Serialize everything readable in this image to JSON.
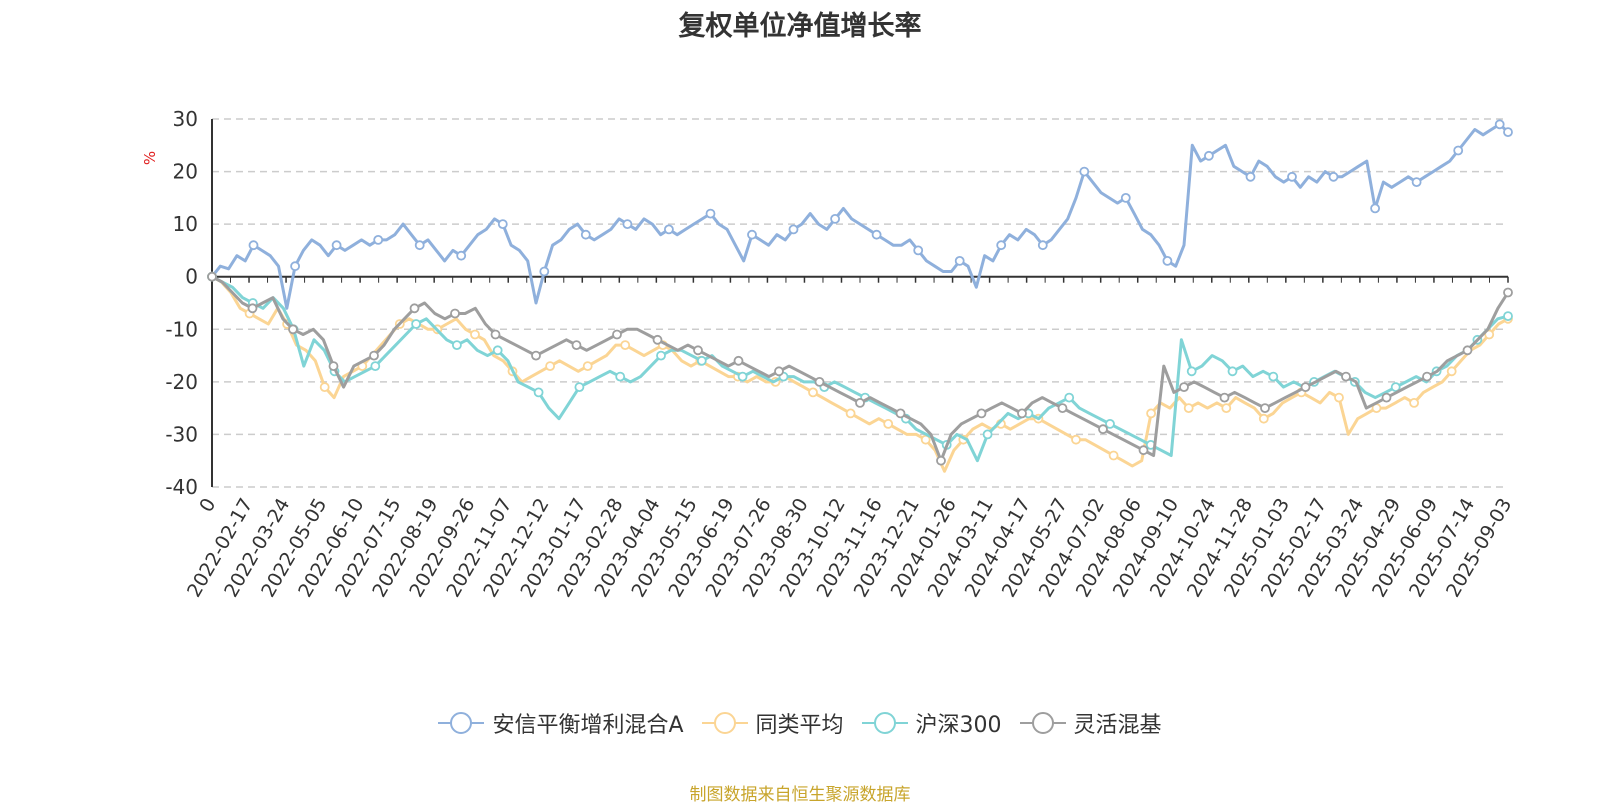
{
  "chart_data": {
    "type": "line",
    "title": "复权单位净值增长率",
    "ylabel": "%",
    "ylim": [
      -40,
      30
    ],
    "yticks": [
      30,
      20,
      10,
      0,
      -10,
      -20,
      -30,
      -40
    ],
    "grid": true,
    "legend_position": "bottom",
    "x_start_label": "0",
    "x_tick_labels": [
      "2022-02-17",
      "2022-03-24",
      "2022-05-05",
      "2022-06-10",
      "2022-07-15",
      "2022-08-19",
      "2022-09-26",
      "2022-11-07",
      "2022-12-12",
      "2023-01-17",
      "2023-02-28",
      "2023-04-04",
      "2023-05-15",
      "2023-06-19",
      "2023-07-26",
      "2023-08-30",
      "2023-10-12",
      "2023-11-16",
      "2023-12-21",
      "2024-01-26",
      "2024-03-11",
      "2024-04-17",
      "2024-05-27",
      "2024-07-02",
      "2024-08-06",
      "2024-09-10",
      "2024-10-24",
      "2024-11-28",
      "2025-01-03",
      "2025-02-17",
      "2025-03-24",
      "2025-04-29",
      "2025-06-09",
      "2025-07-14",
      "2025-09-03"
    ],
    "series": [
      {
        "name": "安信平衡增利混合A",
        "color": "#8fb0dc",
        "values": [
          0,
          2,
          1.5,
          4,
          3,
          6,
          5,
          4,
          2,
          -6,
          2,
          5,
          7,
          6,
          4,
          6,
          5,
          6,
          7,
          6,
          7,
          7,
          8,
          10,
          8,
          6,
          7,
          5,
          3,
          5,
          4,
          6,
          8,
          9,
          11,
          10,
          6,
          5,
          3,
          -5,
          1,
          6,
          7,
          9,
          10,
          8,
          7,
          8,
          9,
          11,
          10,
          9,
          11,
          10,
          8,
          9,
          8,
          9,
          10,
          11,
          12,
          10,
          9,
          6,
          3,
          8,
          7,
          6,
          8,
          7,
          9,
          10,
          12,
          10,
          9,
          11,
          13,
          11,
          10,
          9,
          8,
          7,
          6,
          6,
          7,
          5,
          3,
          2,
          1,
          1,
          3,
          2,
          -2,
          4,
          3,
          6,
          8,
          7,
          9,
          8,
          6,
          7,
          9,
          11,
          15,
          20,
          18,
          16,
          15,
          14,
          15,
          12,
          9,
          8,
          6,
          3,
          2,
          6,
          25,
          22,
          23,
          24,
          25,
          21,
          20,
          19,
          22,
          21,
          19,
          18,
          19,
          17,
          19,
          18,
          20,
          19,
          19,
          20,
          21,
          22,
          13,
          18,
          17,
          18,
          19,
          18,
          19,
          20,
          21,
          22,
          24,
          26,
          28,
          27,
          28,
          29,
          27.5
        ]
      },
      {
        "name": "同类平均",
        "color": "#fbd594",
        "values": [
          0,
          -1,
          -3,
          -6,
          -7,
          -8,
          -9,
          -6,
          -9,
          -13,
          -14,
          -16,
          -21,
          -23,
          -19,
          -18,
          -17,
          -15,
          -13,
          -11,
          -9,
          -8,
          -9,
          -10,
          -10,
          -9,
          -8,
          -10,
          -11,
          -12,
          -15,
          -16,
          -18,
          -20,
          -19,
          -18,
          -17,
          -16,
          -17,
          -18,
          -17,
          -16,
          -15,
          -13,
          -13,
          -14,
          -15,
          -14,
          -13,
          -14,
          -16,
          -17,
          -16,
          -17,
          -18,
          -19,
          -19,
          -20,
          -19,
          -20,
          -20,
          -19,
          -20,
          -21,
          -22,
          -23,
          -24,
          -25,
          -26,
          -27,
          -28,
          -27,
          -28,
          -29,
          -30,
          -30,
          -31,
          -33,
          -37,
          -33,
          -31,
          -29,
          -28,
          -29,
          -28,
          -29,
          -28,
          -27,
          -27,
          -28,
          -29,
          -30,
          -31,
          -31,
          -32,
          -33,
          -34,
          -35,
          -36,
          -35,
          -26,
          -24,
          -25,
          -23,
          -25,
          -24,
          -25,
          -24,
          -25,
          -23,
          -24,
          -25,
          -27,
          -26,
          -24,
          -23,
          -22,
          -23,
          -24,
          -22,
          -23,
          -30,
          -27,
          -26,
          -25,
          -25,
          -24,
          -23,
          -24,
          -22,
          -21,
          -20,
          -18,
          -16,
          -14,
          -13,
          -11,
          -9,
          -8
        ]
      },
      {
        "name": "沪深300",
        "color": "#80d4d6",
        "values": [
          0,
          -1,
          -2,
          -4,
          -5,
          -6,
          -4,
          -6,
          -10,
          -17,
          -12,
          -14,
          -18,
          -20,
          -19,
          -18,
          -17,
          -15,
          -13,
          -11,
          -9,
          -8,
          -10,
          -12,
          -13,
          -12,
          -14,
          -15,
          -14,
          -16,
          -20,
          -21,
          -22,
          -25,
          -27,
          -24,
          -21,
          -20,
          -19,
          -18,
          -19,
          -20,
          -19,
          -17,
          -15,
          -14,
          -14,
          -15,
          -16,
          -15,
          -17,
          -18,
          -19,
          -18,
          -19,
          -20,
          -19,
          -19,
          -20,
          -20,
          -21,
          -20,
          -21,
          -22,
          -23,
          -24,
          -25,
          -26,
          -27,
          -29,
          -30,
          -31,
          -32,
          -30,
          -31,
          -35,
          -30,
          -28,
          -26,
          -27,
          -26,
          -27,
          -25,
          -24,
          -23,
          -25,
          -26,
          -27,
          -28,
          -29,
          -30,
          -31,
          -32,
          -33,
          -34,
          -12,
          -18,
          -17,
          -15,
          -16,
          -18,
          -17,
          -19,
          -18,
          -19,
          -21,
          -20,
          -21,
          -20,
          -19,
          -18,
          -19,
          -20,
          -22,
          -23,
          -22,
          -21,
          -20,
          -19,
          -20,
          -18,
          -17,
          -15,
          -14,
          -12,
          -10,
          -8,
          -7.5
        ]
      },
      {
        "name": "灵活混基",
        "color": "#9e9e9e",
        "values": [
          0,
          -1,
          -3,
          -5,
          -6,
          -5,
          -4,
          -8,
          -10,
          -11,
          -10,
          -12,
          -17,
          -21,
          -17,
          -16,
          -15,
          -13,
          -10,
          -8,
          -6,
          -5,
          -7,
          -8,
          -7,
          -7,
          -6,
          -9,
          -11,
          -12,
          -13,
          -14,
          -15,
          -14,
          -13,
          -12,
          -13,
          -14,
          -13,
          -12,
          -11,
          -10,
          -10,
          -11,
          -12,
          -13,
          -14,
          -13,
          -14,
          -15,
          -16,
          -17,
          -16,
          -17,
          -18,
          -19,
          -18,
          -17,
          -18,
          -19,
          -20,
          -21,
          -22,
          -23,
          -24,
          -23,
          -24,
          -25,
          -26,
          -27,
          -28,
          -30,
          -35,
          -30,
          -28,
          -27,
          -26,
          -25,
          -24,
          -25,
          -26,
          -24,
          -23,
          -24,
          -25,
          -26,
          -27,
          -28,
          -29,
          -30,
          -31,
          -32,
          -33,
          -34,
          -17,
          -22,
          -21,
          -20,
          -21,
          -22,
          -23,
          -22,
          -23,
          -24,
          -25,
          -24,
          -23,
          -22,
          -21,
          -20,
          -19,
          -18,
          -19,
          -20,
          -25,
          -24,
          -23,
          -22,
          -21,
          -20,
          -19,
          -18,
          -16,
          -15,
          -14,
          -12,
          -10,
          -6,
          -3
        ]
      }
    ]
  },
  "legend": {
    "items": [
      {
        "label": "安信平衡增利混合A",
        "color": "#8fb0dc"
      },
      {
        "label": "同类平均",
        "color": "#fbd594"
      },
      {
        "label": "沪深300",
        "color": "#80d4d6"
      },
      {
        "label": "灵活混基",
        "color": "#9e9e9e"
      }
    ]
  },
  "source_note": "制图数据来自恒生聚源数据库"
}
